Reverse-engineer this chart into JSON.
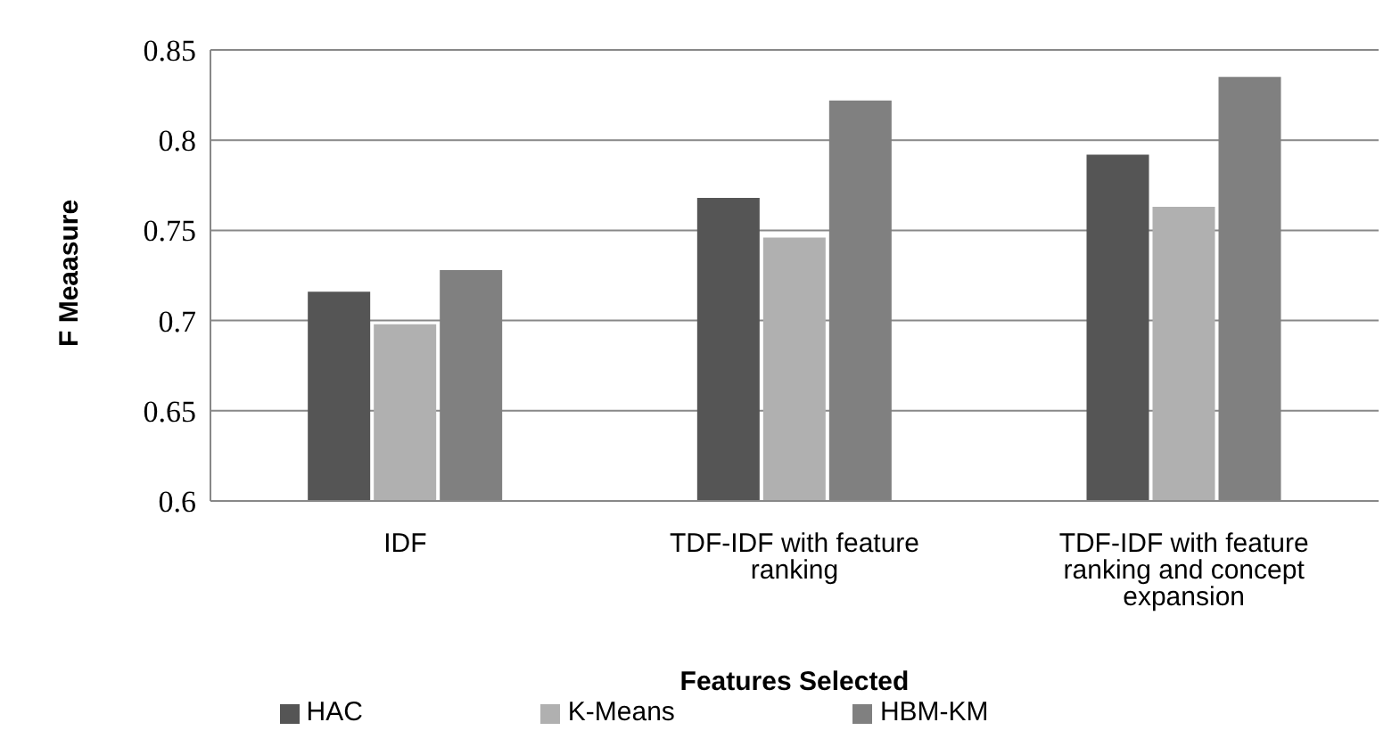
{
  "chart_data": {
    "type": "bar",
    "ylabel": "F Meaasure",
    "xlabel": "Features Selected",
    "categories": [
      "IDF",
      "TDF-IDF with feature ranking",
      "TDF-IDF with feature ranking and concept expansion"
    ],
    "series": [
      {
        "name": "HAC",
        "color": "#555555",
        "values": [
          0.716,
          0.768,
          0.792
        ]
      },
      {
        "name": "K-Means",
        "color": "#b0b0b0",
        "values": [
          0.698,
          0.746,
          0.763
        ]
      },
      {
        "name": "HBM-KM",
        "color": "#808080",
        "values": [
          0.728,
          0.822,
          0.835
        ]
      }
    ],
    "ylim": [
      0.6,
      0.85
    ],
    "yticks": [
      0.6,
      0.65,
      0.7,
      0.75,
      0.8,
      0.85
    ],
    "grid": "y",
    "legend": "bottom"
  }
}
